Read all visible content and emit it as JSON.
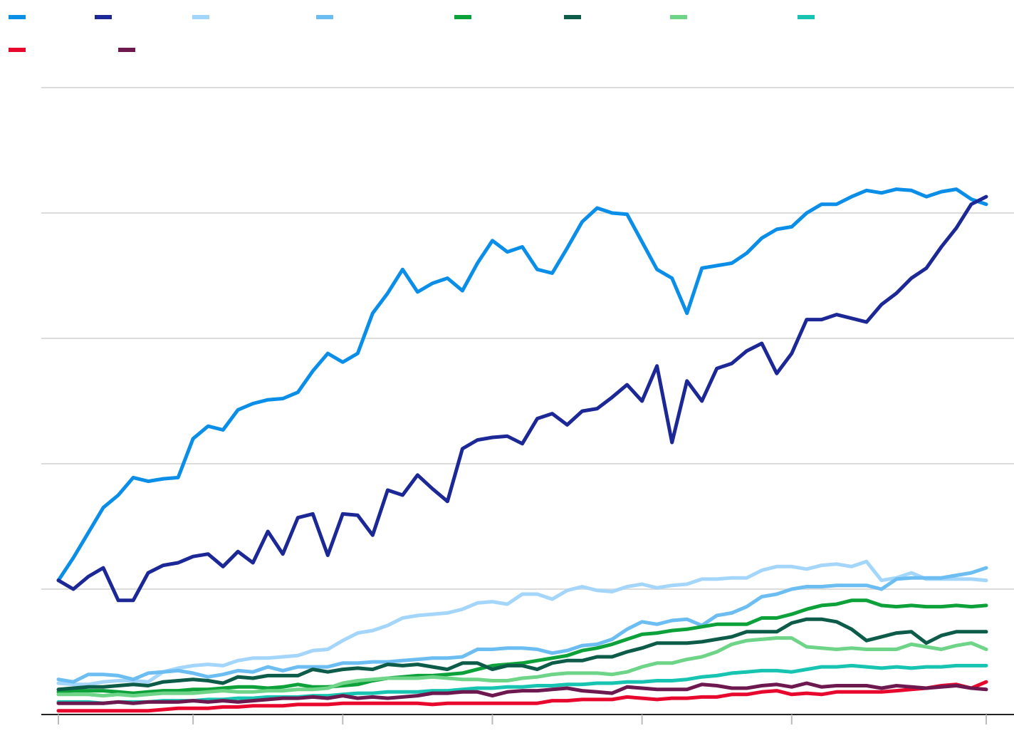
{
  "chart_data": {
    "type": "line",
    "title": "",
    "xlabel": "",
    "ylabel": "",
    "x_points": 63,
    "ylim": [
      0,
      5
    ],
    "grid": true,
    "legend_position": "top-left",
    "series": [
      {
        "color": "#0a8ee8",
        "values": [
          1.07,
          1.25,
          1.45,
          1.65,
          1.75,
          1.89,
          1.86,
          1.88,
          1.89,
          2.2,
          2.3,
          2.27,
          2.43,
          2.48,
          2.51,
          2.52,
          2.57,
          2.74,
          2.88,
          2.81,
          2.88,
          3.2,
          3.36,
          3.55,
          3.37,
          3.44,
          3.48,
          3.38,
          3.6,
          3.78,
          3.69,
          3.73,
          3.55,
          3.52,
          3.72,
          3.93,
          4.04,
          4.0,
          3.99,
          3.77,
          3.55,
          3.48,
          3.2,
          3.56,
          3.58,
          3.6,
          3.68,
          3.8,
          3.87,
          3.89,
          4.0,
          4.07,
          4.07,
          4.13,
          4.18,
          4.16,
          4.19,
          4.18,
          4.13,
          4.17,
          4.19,
          4.11,
          4.07
        ]
      },
      {
        "color": "#1b2896",
        "values": [
          1.07,
          1.0,
          1.1,
          1.17,
          0.91,
          0.91,
          1.13,
          1.19,
          1.21,
          1.26,
          1.28,
          1.18,
          1.3,
          1.21,
          1.46,
          1.28,
          1.57,
          1.6,
          1.27,
          1.6,
          1.59,
          1.43,
          1.79,
          1.75,
          1.91,
          1.8,
          1.7,
          2.12,
          2.19,
          2.21,
          2.22,
          2.16,
          2.36,
          2.4,
          2.31,
          2.42,
          2.44,
          2.53,
          2.63,
          2.5,
          2.78,
          2.17,
          2.66,
          2.5,
          2.76,
          2.8,
          2.9,
          2.96,
          2.72,
          2.88,
          3.15,
          3.15,
          3.19,
          3.16,
          3.13,
          3.27,
          3.36,
          3.48,
          3.56,
          3.73,
          3.88,
          4.07,
          4.13
        ]
      },
      {
        "color": "#a3d6fa",
        "values": [
          0.25,
          0.24,
          0.24,
          0.26,
          0.27,
          0.27,
          0.26,
          0.34,
          0.37,
          0.39,
          0.4,
          0.39,
          0.43,
          0.45,
          0.45,
          0.46,
          0.47,
          0.51,
          0.52,
          0.59,
          0.65,
          0.67,
          0.71,
          0.77,
          0.79,
          0.8,
          0.81,
          0.84,
          0.89,
          0.9,
          0.88,
          0.96,
          0.96,
          0.92,
          0.99,
          1.02,
          0.99,
          0.98,
          1.02,
          1.04,
          1.01,
          1.03,
          1.04,
          1.08,
          1.08,
          1.09,
          1.09,
          1.15,
          1.18,
          1.18,
          1.16,
          1.19,
          1.2,
          1.18,
          1.22,
          1.07,
          1.09,
          1.13,
          1.08,
          1.08,
          1.08,
          1.08,
          1.07
        ]
      },
      {
        "color": "#6cbdf2",
        "values": [
          0.28,
          0.26,
          0.32,
          0.32,
          0.31,
          0.28,
          0.33,
          0.34,
          0.35,
          0.33,
          0.3,
          0.32,
          0.35,
          0.34,
          0.38,
          0.35,
          0.38,
          0.38,
          0.38,
          0.41,
          0.41,
          0.42,
          0.42,
          0.43,
          0.44,
          0.45,
          0.45,
          0.46,
          0.52,
          0.52,
          0.53,
          0.53,
          0.52,
          0.49,
          0.51,
          0.55,
          0.56,
          0.6,
          0.68,
          0.74,
          0.72,
          0.75,
          0.76,
          0.71,
          0.79,
          0.81,
          0.86,
          0.94,
          0.96,
          1.0,
          1.02,
          1.02,
          1.03,
          1.03,
          1.03,
          1.0,
          1.08,
          1.09,
          1.09,
          1.09,
          1.11,
          1.13,
          1.17
        ]
      },
      {
        "color": "#0da13a",
        "values": [
          0.18,
          0.19,
          0.19,
          0.19,
          0.18,
          0.17,
          0.18,
          0.19,
          0.19,
          0.2,
          0.2,
          0.21,
          0.22,
          0.22,
          0.21,
          0.22,
          0.24,
          0.22,
          0.22,
          0.23,
          0.24,
          0.27,
          0.29,
          0.3,
          0.31,
          0.31,
          0.32,
          0.33,
          0.36,
          0.39,
          0.4,
          0.41,
          0.43,
          0.45,
          0.47,
          0.51,
          0.53,
          0.56,
          0.6,
          0.64,
          0.65,
          0.67,
          0.68,
          0.7,
          0.72,
          0.72,
          0.72,
          0.77,
          0.77,
          0.8,
          0.84,
          0.87,
          0.88,
          0.91,
          0.91,
          0.87,
          0.86,
          0.87,
          0.86,
          0.86,
          0.87,
          0.86,
          0.87
        ]
      },
      {
        "color": "#0d5c4a",
        "values": [
          0.2,
          0.21,
          0.22,
          0.22,
          0.23,
          0.24,
          0.23,
          0.26,
          0.27,
          0.28,
          0.27,
          0.25,
          0.3,
          0.29,
          0.31,
          0.31,
          0.31,
          0.36,
          0.34,
          0.36,
          0.37,
          0.36,
          0.4,
          0.39,
          0.4,
          0.38,
          0.36,
          0.41,
          0.41,
          0.36,
          0.39,
          0.39,
          0.36,
          0.41,
          0.43,
          0.43,
          0.46,
          0.46,
          0.5,
          0.53,
          0.57,
          0.57,
          0.57,
          0.58,
          0.6,
          0.62,
          0.66,
          0.66,
          0.66,
          0.73,
          0.76,
          0.76,
          0.74,
          0.68,
          0.59,
          0.62,
          0.65,
          0.66,
          0.57,
          0.63,
          0.66,
          0.66,
          0.66
        ]
      },
      {
        "color": "#6ed488",
        "values": [
          0.16,
          0.16,
          0.16,
          0.15,
          0.16,
          0.15,
          0.16,
          0.17,
          0.17,
          0.17,
          0.18,
          0.19,
          0.18,
          0.18,
          0.19,
          0.19,
          0.2,
          0.2,
          0.21,
          0.25,
          0.27,
          0.28,
          0.29,
          0.29,
          0.29,
          0.3,
          0.29,
          0.28,
          0.28,
          0.27,
          0.27,
          0.29,
          0.3,
          0.32,
          0.33,
          0.33,
          0.33,
          0.32,
          0.34,
          0.38,
          0.41,
          0.41,
          0.44,
          0.46,
          0.5,
          0.56,
          0.59,
          0.6,
          0.61,
          0.61,
          0.54,
          0.53,
          0.52,
          0.53,
          0.52,
          0.52,
          0.52,
          0.56,
          0.54,
          0.52,
          0.55,
          0.57,
          0.52
        ]
      },
      {
        "color": "#17c4b2",
        "values": [
          0.1,
          0.1,
          0.1,
          0.09,
          0.1,
          0.1,
          0.1,
          0.11,
          0.11,
          0.11,
          0.12,
          0.12,
          0.13,
          0.13,
          0.14,
          0.14,
          0.14,
          0.15,
          0.15,
          0.16,
          0.17,
          0.17,
          0.18,
          0.18,
          0.18,
          0.19,
          0.19,
          0.2,
          0.21,
          0.21,
          0.22,
          0.22,
          0.23,
          0.23,
          0.24,
          0.24,
          0.25,
          0.25,
          0.26,
          0.26,
          0.27,
          0.27,
          0.28,
          0.3,
          0.31,
          0.33,
          0.34,
          0.35,
          0.35,
          0.34,
          0.36,
          0.38,
          0.38,
          0.39,
          0.38,
          0.37,
          0.38,
          0.37,
          0.38,
          0.38,
          0.39,
          0.39,
          0.39
        ]
      },
      {
        "color": "#e8082e",
        "values": [
          0.03,
          0.03,
          0.03,
          0.03,
          0.03,
          0.03,
          0.03,
          0.04,
          0.05,
          0.05,
          0.05,
          0.06,
          0.06,
          0.07,
          0.07,
          0.07,
          0.08,
          0.08,
          0.08,
          0.09,
          0.09,
          0.09,
          0.09,
          0.09,
          0.09,
          0.08,
          0.09,
          0.09,
          0.09,
          0.09,
          0.09,
          0.09,
          0.09,
          0.11,
          0.11,
          0.12,
          0.12,
          0.12,
          0.14,
          0.13,
          0.12,
          0.13,
          0.13,
          0.14,
          0.14,
          0.16,
          0.16,
          0.18,
          0.19,
          0.16,
          0.17,
          0.16,
          0.18,
          0.18,
          0.18,
          0.18,
          0.19,
          0.2,
          0.21,
          0.23,
          0.24,
          0.21,
          0.26
        ]
      },
      {
        "color": "#6e1850",
        "values": [
          0.09,
          0.09,
          0.09,
          0.09,
          0.1,
          0.09,
          0.1,
          0.1,
          0.1,
          0.11,
          0.1,
          0.11,
          0.1,
          0.11,
          0.12,
          0.13,
          0.13,
          0.14,
          0.13,
          0.15,
          0.13,
          0.14,
          0.13,
          0.14,
          0.15,
          0.17,
          0.17,
          0.18,
          0.18,
          0.15,
          0.18,
          0.19,
          0.19,
          0.2,
          0.21,
          0.19,
          0.18,
          0.17,
          0.22,
          0.21,
          0.2,
          0.2,
          0.2,
          0.24,
          0.23,
          0.21,
          0.21,
          0.23,
          0.24,
          0.22,
          0.25,
          0.22,
          0.23,
          0.23,
          0.23,
          0.21,
          0.23,
          0.22,
          0.21,
          0.22,
          0.23,
          0.21,
          0.2
        ]
      }
    ]
  }
}
